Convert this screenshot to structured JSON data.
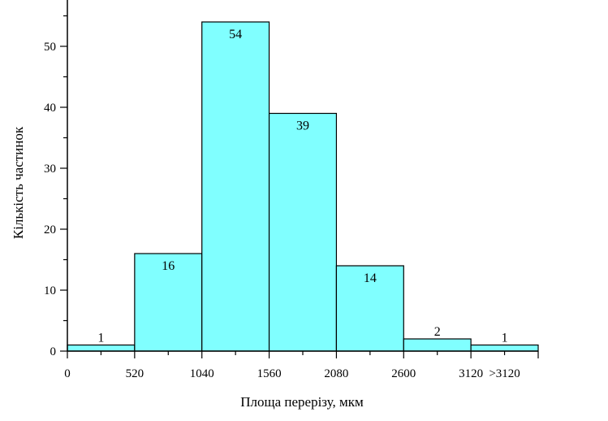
{
  "chart_data": {
    "type": "bar",
    "title": "",
    "xlabel": "Площа перерізу, мкм",
    "ylabel": "Кількість частинок",
    "bins": [
      {
        "start": 0,
        "end": 520,
        "value": 1
      },
      {
        "start": 520,
        "end": 1040,
        "value": 16
      },
      {
        "start": 1040,
        "end": 1560,
        "value": 54
      },
      {
        "start": 1560,
        "end": 2080,
        "value": 39
      },
      {
        "start": 2080,
        "end": 2600,
        "value": 14
      },
      {
        "start": 2600,
        "end": 3120,
        "value": 2
      },
      {
        "start": 3120,
        "end": 3640,
        "value": 1
      }
    ],
    "x_tick_labels": [
      {
        "x": 0,
        "label": "0"
      },
      {
        "x": 520,
        "label": "520"
      },
      {
        "x": 1040,
        "label": "1040"
      },
      {
        "x": 1560,
        "label": "1560"
      },
      {
        "x": 2080,
        "label": "2080"
      },
      {
        "x": 2600,
        "label": "2600"
      },
      {
        "x": 3120,
        "label": "3120"
      },
      {
        "x": 3380,
        "label": ">3120"
      }
    ],
    "y_ticks": [
      0,
      10,
      20,
      30,
      40,
      50
    ],
    "xlim": [
      0,
      3640
    ],
    "ylim": [
      0,
      58
    ],
    "bar_color": "#80FFFF",
    "edge_color": "#000000",
    "grid": false,
    "legend": "none"
  }
}
